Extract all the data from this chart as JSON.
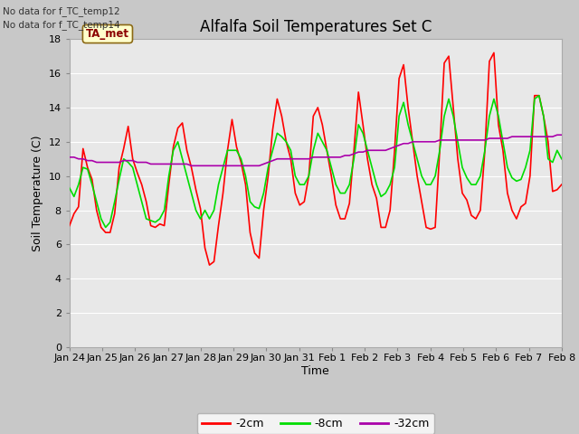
{
  "title": "Alfalfa Soil Temperatures Set C",
  "xlabel": "Time",
  "ylabel": "Soil Temperature (C)",
  "no_data_text": [
    "No data for f_TC_temp12",
    "No data for f_TC_temp14"
  ],
  "legend_label": "TA_met",
  "ylim": [
    0,
    18
  ],
  "yticks": [
    0,
    2,
    4,
    6,
    8,
    10,
    12,
    14,
    16,
    18
  ],
  "xtick_labels": [
    "Jan 24",
    "Jan 25",
    "Jan 26",
    "Jan 27",
    "Jan 28",
    "Jan 29",
    "Jan 30",
    "Jan 31",
    "Feb 1",
    "Feb 2",
    "Feb 3",
    "Feb 4",
    "Feb 5",
    "Feb 6",
    "Feb 7",
    "Feb 8"
  ],
  "fig_bg_color": "#c8c8c8",
  "plot_bg_color": "#e8e8e8",
  "grid_color": "#ffffff",
  "line_colors": {
    "2cm": "#ff0000",
    "8cm": "#00dd00",
    "32cm": "#aa00aa"
  },
  "line_widths": {
    "2cm": 1.2,
    "8cm": 1.2,
    "32cm": 1.2
  },
  "t_2cm": [
    7.1,
    7.8,
    8.2,
    11.6,
    10.5,
    9.8,
    8.0,
    7.0,
    6.7,
    6.7,
    7.8,
    10.5,
    11.6,
    12.9,
    11.0,
    10.2,
    9.5,
    8.5,
    7.1,
    7.0,
    7.2,
    7.1,
    9.5,
    11.7,
    12.8,
    13.1,
    11.5,
    10.5,
    9.2,
    8.1,
    5.8,
    4.8,
    5.0,
    7.1,
    9.0,
    11.5,
    13.3,
    11.7,
    10.8,
    9.5,
    6.7,
    5.5,
    5.2,
    8.0,
    10.0,
    12.7,
    14.5,
    13.5,
    12.0,
    11.0,
    9.0,
    8.3,
    8.5,
    10.0,
    13.5,
    14.0,
    13.0,
    11.5,
    10.0,
    8.3,
    7.5,
    7.5,
    8.4,
    11.5,
    14.9,
    13.0,
    11.0,
    9.5,
    8.7,
    7.0,
    7.0,
    8.0,
    11.5,
    15.7,
    16.5,
    14.0,
    12.0,
    10.0,
    8.5,
    7.0,
    6.9,
    7.0,
    11.5,
    16.6,
    17.0,
    14.0,
    11.0,
    9.0,
    8.6,
    7.7,
    7.5,
    8.0,
    11.5,
    16.7,
    17.2,
    13.0,
    11.5,
    9.0,
    8.0,
    7.5,
    8.2,
    8.4,
    10.0,
    14.7,
    14.7,
    13.5,
    12.0,
    9.1,
    9.2,
    9.5
  ],
  "t_8cm": [
    9.3,
    8.8,
    9.5,
    10.5,
    10.4,
    9.5,
    8.5,
    7.5,
    7.0,
    7.3,
    8.5,
    9.8,
    11.0,
    10.8,
    10.5,
    9.5,
    8.5,
    7.5,
    7.4,
    7.3,
    7.5,
    8.0,
    10.0,
    11.5,
    12.0,
    11.0,
    10.0,
    9.0,
    8.0,
    7.5,
    8.0,
    7.5,
    8.0,
    9.5,
    10.5,
    11.5,
    11.5,
    11.5,
    11.0,
    10.0,
    8.5,
    8.2,
    8.1,
    9.0,
    10.5,
    11.5,
    12.5,
    12.3,
    12.0,
    11.5,
    10.0,
    9.5,
    9.5,
    10.0,
    11.5,
    12.5,
    12.0,
    11.5,
    10.5,
    9.5,
    9.0,
    9.0,
    9.5,
    11.0,
    13.0,
    12.5,
    11.5,
    10.5,
    9.5,
    8.8,
    9.0,
    9.5,
    10.5,
    13.5,
    14.3,
    13.0,
    12.0,
    11.0,
    10.0,
    9.5,
    9.5,
    10.0,
    11.5,
    13.5,
    14.5,
    13.5,
    12.0,
    10.5,
    9.9,
    9.5,
    9.5,
    10.0,
    11.5,
    13.5,
    14.5,
    13.5,
    12.0,
    10.5,
    9.9,
    9.7,
    9.8,
    10.5,
    11.5,
    14.5,
    14.7,
    13.5,
    11.0,
    10.8,
    11.5,
    11.0
  ],
  "t_32cm": [
    11.1,
    11.1,
    11.0,
    11.0,
    10.9,
    10.9,
    10.8,
    10.8,
    10.8,
    10.8,
    10.8,
    10.8,
    10.9,
    10.9,
    10.9,
    10.8,
    10.8,
    10.8,
    10.7,
    10.7,
    10.7,
    10.7,
    10.7,
    10.7,
    10.7,
    10.7,
    10.7,
    10.6,
    10.6,
    10.6,
    10.6,
    10.6,
    10.6,
    10.6,
    10.6,
    10.6,
    10.6,
    10.6,
    10.6,
    10.6,
    10.6,
    10.6,
    10.6,
    10.7,
    10.8,
    10.9,
    11.0,
    11.0,
    11.0,
    11.0,
    11.0,
    11.0,
    11.0,
    11.0,
    11.1,
    11.1,
    11.1,
    11.1,
    11.1,
    11.1,
    11.1,
    11.2,
    11.2,
    11.3,
    11.4,
    11.4,
    11.5,
    11.5,
    11.5,
    11.5,
    11.5,
    11.6,
    11.7,
    11.8,
    11.9,
    11.9,
    12.0,
    12.0,
    12.0,
    12.0,
    12.0,
    12.0,
    12.1,
    12.1,
    12.1,
    12.1,
    12.1,
    12.1,
    12.1,
    12.1,
    12.1,
    12.1,
    12.1,
    12.2,
    12.2,
    12.2,
    12.2,
    12.2,
    12.3,
    12.3,
    12.3,
    12.3,
    12.3,
    12.3,
    12.3,
    12.3,
    12.3,
    12.3,
    12.4,
    12.4
  ]
}
